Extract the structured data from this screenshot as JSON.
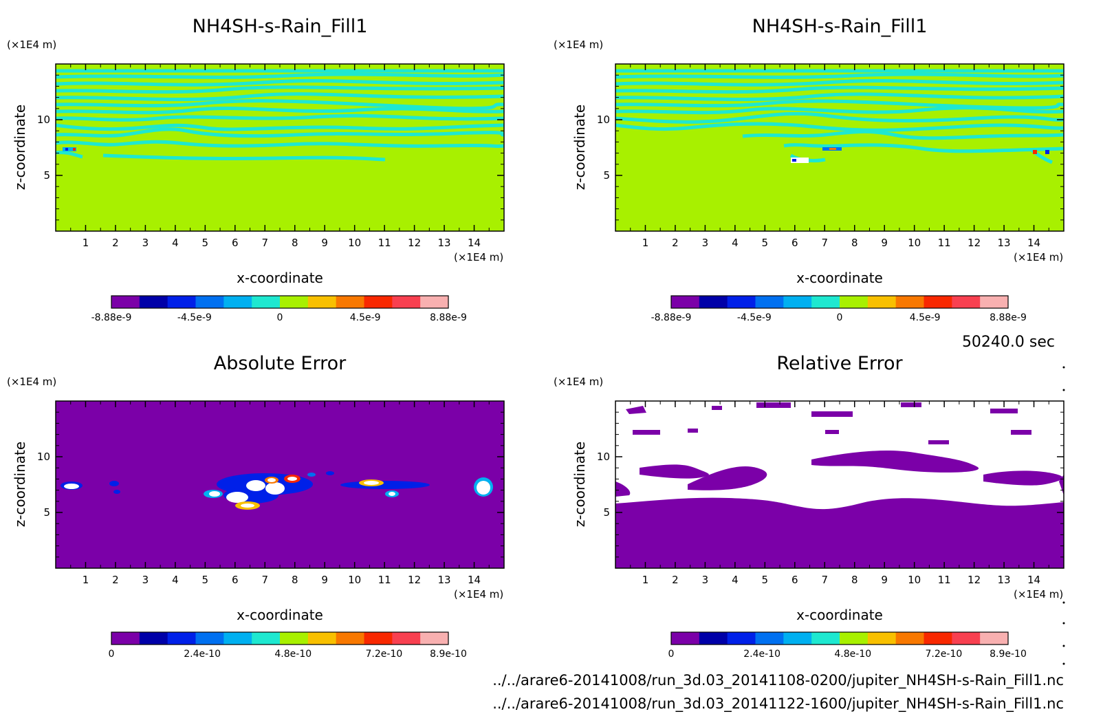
{
  "time_label": "50240.0 sec",
  "file_paths": [
    "../../arare6-20141008/run_3d.03_20141108-0200/jupiter_NH4SH-s-Rain_Fill1.nc",
    "../../arare6-20141008/run_3d.03_20141122-1600/jupiter_NH4SH-s-Rain_Fill1.nc"
  ],
  "colors": {
    "background_field": "#a8f000",
    "contour_band": "#1ee8d0",
    "error_background": "#7b00a8",
    "relative_error_gaps": "#ffffff"
  },
  "chart_data": [
    {
      "type": "heatmap",
      "title": "NH4SH-s-Rain_Fill1",
      "xlabel": "x-coordinate",
      "ylabel": "z-coordinate",
      "x_unit": "(×1E4 m)",
      "y_unit": "(×1E4 m)",
      "xlim": [
        0,
        15
      ],
      "ylim": [
        0,
        15
      ],
      "x_ticks": [
        1,
        2,
        3,
        4,
        5,
        6,
        7,
        8,
        9,
        10,
        11,
        12,
        13,
        14
      ],
      "y_ticks": [
        5,
        10
      ],
      "colorbar": {
        "colors": [
          "#7b00a8",
          "#0000a8",
          "#0020e8",
          "#0070f0",
          "#00b0f0",
          "#1ee8d0",
          "#a8f000",
          "#f8c000",
          "#f87800",
          "#f82800",
          "#f84050",
          "#f8b0b0"
        ],
        "tick_labels": [
          "-8.88e-9",
          "-4.5e-9",
          "0",
          "4.5e-9",
          "8.88e-9"
        ],
        "tick_values": [
          -8.88e-09,
          -4.5e-09,
          0,
          4.5e-09,
          8.88e-09
        ],
        "range": [
          -8.88e-09,
          8.88e-09
        ]
      }
    },
    {
      "type": "heatmap",
      "title": "NH4SH-s-Rain_Fill1",
      "xlabel": "x-coordinate",
      "ylabel": "z-coordinate",
      "x_unit": "(×1E4 m)",
      "y_unit": "(×1E4 m)",
      "xlim": [
        0,
        15
      ],
      "ylim": [
        0,
        15
      ],
      "x_ticks": [
        1,
        2,
        3,
        4,
        5,
        6,
        7,
        8,
        9,
        10,
        11,
        12,
        13,
        14
      ],
      "y_ticks": [
        5,
        10
      ],
      "colorbar": {
        "colors": [
          "#7b00a8",
          "#0000a8",
          "#0020e8",
          "#0070f0",
          "#00b0f0",
          "#1ee8d0",
          "#a8f000",
          "#f8c000",
          "#f87800",
          "#f82800",
          "#f84050",
          "#f8b0b0"
        ],
        "tick_labels": [
          "-8.88e-9",
          "-4.5e-9",
          "0",
          "4.5e-9",
          "8.88e-9"
        ],
        "tick_values": [
          -8.88e-09,
          -4.5e-09,
          0,
          4.5e-09,
          8.88e-09
        ],
        "range": [
          -8.88e-09,
          8.88e-09
        ]
      }
    },
    {
      "type": "heatmap",
      "title": "Absolute Error",
      "xlabel": "x-coordinate",
      "ylabel": "z-coordinate",
      "x_unit": "(×1E4 m)",
      "y_unit": "(×1E4 m)",
      "xlim": [
        0,
        15
      ],
      "ylim": [
        0,
        15
      ],
      "x_ticks": [
        1,
        2,
        3,
        4,
        5,
        6,
        7,
        8,
        9,
        10,
        11,
        12,
        13,
        14
      ],
      "y_ticks": [
        5,
        10
      ],
      "colorbar": {
        "colors": [
          "#7b00a8",
          "#0000a8",
          "#0020e8",
          "#0070f0",
          "#00b0f0",
          "#1ee8d0",
          "#a8f000",
          "#f8c000",
          "#f87800",
          "#f82800",
          "#f84050",
          "#f8b0b0"
        ],
        "tick_labels": [
          "0",
          "2.4e-10",
          "4.8e-10",
          "7.2e-10",
          "8.9e-10"
        ],
        "tick_values": [
          0,
          2.4e-10,
          4.8e-10,
          7.2e-10,
          8.9e-10
        ],
        "range": [
          0,
          8.9e-10
        ]
      }
    },
    {
      "type": "heatmap",
      "title": "Relative Error",
      "xlabel": "x-coordinate",
      "ylabel": "z-coordinate",
      "x_unit": "(×1E4 m)",
      "y_unit": "(×1E4 m)",
      "xlim": [
        0,
        15
      ],
      "ylim": [
        0,
        15
      ],
      "x_ticks": [
        1,
        2,
        3,
        4,
        5,
        6,
        7,
        8,
        9,
        10,
        11,
        12,
        13,
        14
      ],
      "y_ticks": [
        5,
        10
      ],
      "colorbar": {
        "colors": [
          "#7b00a8",
          "#0000a8",
          "#0020e8",
          "#0070f0",
          "#00b0f0",
          "#1ee8d0",
          "#a8f000",
          "#f8c000",
          "#f87800",
          "#f82800",
          "#f84050",
          "#f8b0b0"
        ],
        "tick_labels": [
          "0",
          "2.4e-10",
          "4.8e-10",
          "7.2e-10",
          "8.9e-10"
        ],
        "tick_values": [
          0,
          2.4e-10,
          4.8e-10,
          7.2e-10,
          8.9e-10
        ],
        "range": [
          0,
          8.9e-10
        ]
      }
    }
  ]
}
